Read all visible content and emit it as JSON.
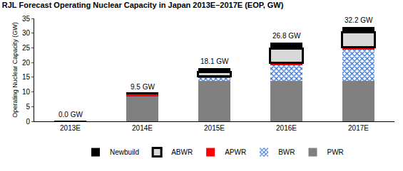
{
  "chart_data": {
    "type": "bar",
    "title": "RJL Forecast Operating Nuclear Capacity in Japan 2013E–2017E (EOP, GW)",
    "y_label": "Operating Nuclear Capacity (GW)",
    "categories": [
      "2013E",
      "2014E",
      "2015E",
      "2016E",
      "2017E"
    ],
    "series": [
      {
        "name": "PWR",
        "color": "#808080",
        "values": [
          0,
          8.5,
          13.8,
          13.8,
          13.8
        ]
      },
      {
        "name": "BWR",
        "color": "#2f6fd6",
        "marker": "checkered",
        "values": [
          0,
          0,
          1.0,
          5.2,
          10.5
        ]
      },
      {
        "name": "APWR",
        "color": "#ff0000",
        "values": [
          0,
          1.0,
          0.5,
          0.8,
          1.0
        ]
      },
      {
        "name": "ABWR",
        "color": "#d9d9d9",
        "line_style": "outlined",
        "values": [
          0,
          0,
          1.5,
          5.0,
          5.0
        ]
      },
      {
        "name": "Newbuild",
        "color": "#000000",
        "values": [
          0,
          0,
          1.3,
          2.0,
          1.9
        ]
      }
    ],
    "annotations": [
      "0.0 GW",
      "9.5 GW",
      "18.1 GW",
      "26.8 GW",
      "32.2 GW"
    ],
    "stacked": true,
    "ylim": [
      0,
      35
    ],
    "yticks": [
      0,
      5,
      10,
      15,
      20,
      25,
      30,
      35
    ],
    "grid": false,
    "legend": "bottom"
  }
}
